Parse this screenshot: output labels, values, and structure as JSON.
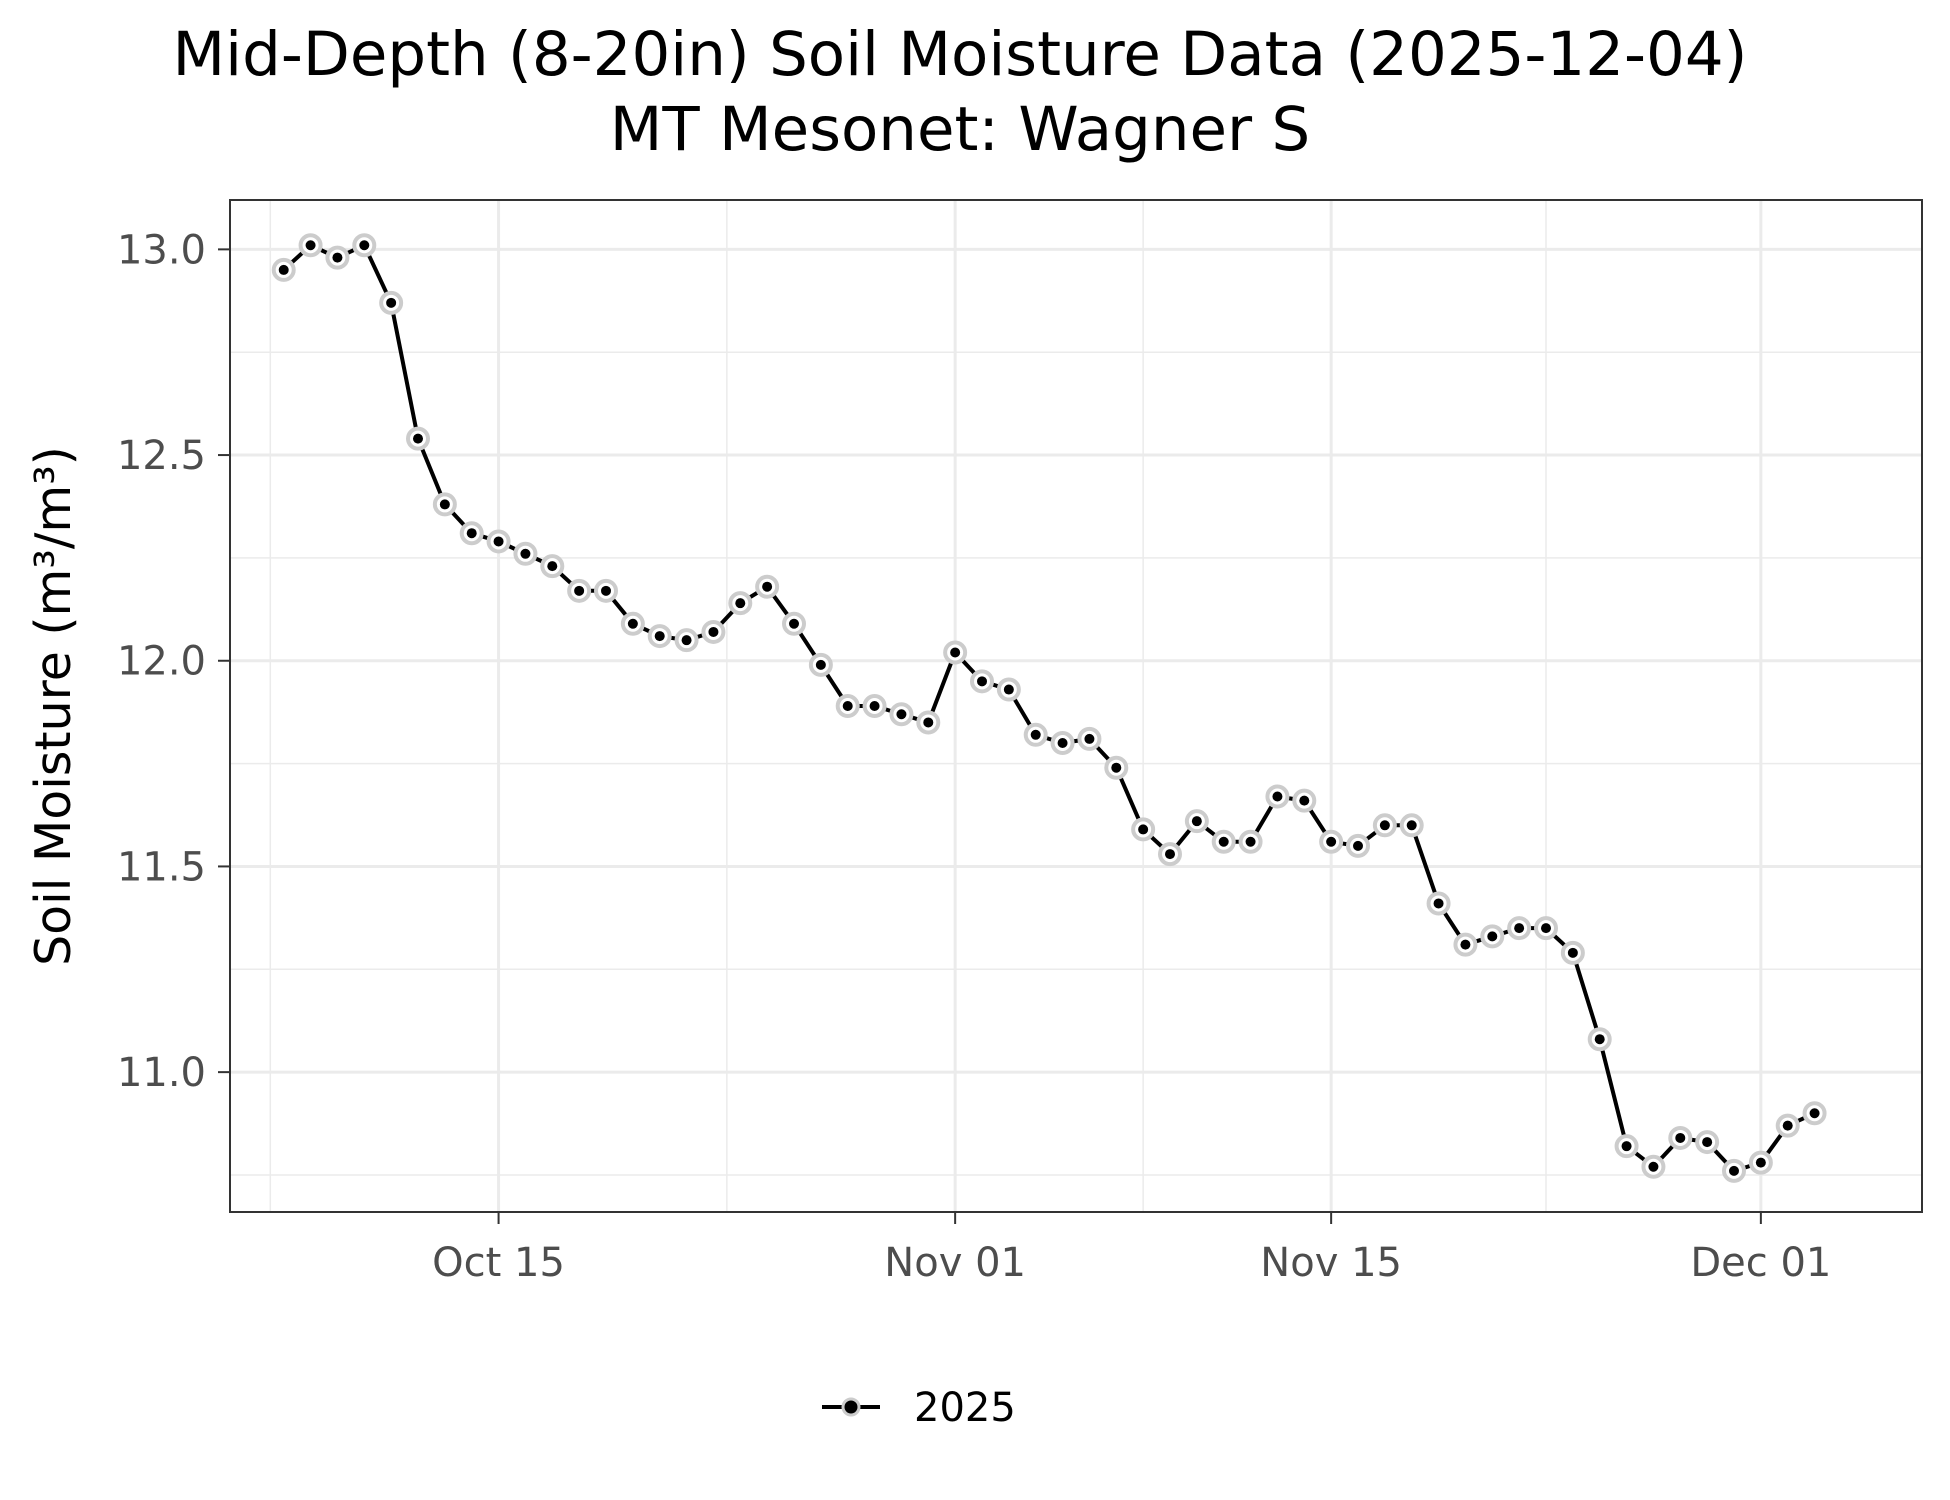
{
  "title_line1": "Mid-Depth (8-20in) Soil Moisture Data (2025-12-04)",
  "title_line2": "MT Mesonet: Wagner S",
  "chart_data": {
    "type": "line",
    "title": "Mid-Depth (8-20in) Soil Moisture Data (2025-12-04)",
    "subtitle": "MT Mesonet: Wagner S",
    "xlabel": "",
    "ylabel": "Soil Moisture (m³/m³)",
    "x_tick_labels": [
      "Oct 15",
      "Nov 01",
      "Nov 15",
      "Dec 01"
    ],
    "x_ticks": [
      "2025-10-15",
      "2025-11-01",
      "2025-11-15",
      "2025-12-01"
    ],
    "y_tick_labels": [
      "11.0",
      "11.5",
      "12.0",
      "12.5",
      "13.0"
    ],
    "y_ticks": [
      11.0,
      11.5,
      12.0,
      12.5,
      13.0
    ],
    "xlim": [
      "2025-10-05",
      "2025-12-07"
    ],
    "ylim": [
      10.66,
      13.12
    ],
    "grid": true,
    "legend_position": "bottom",
    "series": [
      {
        "name": "2025",
        "color": "#000000",
        "marker_halo_color": "#cccccc",
        "x": [
          "2025-10-07",
          "2025-10-08",
          "2025-10-09",
          "2025-10-10",
          "2025-10-11",
          "2025-10-12",
          "2025-10-13",
          "2025-10-14",
          "2025-10-15",
          "2025-10-16",
          "2025-10-17",
          "2025-10-18",
          "2025-10-19",
          "2025-10-20",
          "2025-10-21",
          "2025-10-22",
          "2025-10-23",
          "2025-10-24",
          "2025-10-25",
          "2025-10-26",
          "2025-10-27",
          "2025-10-28",
          "2025-10-29",
          "2025-10-30",
          "2025-10-31",
          "2025-11-01",
          "2025-11-02",
          "2025-11-03",
          "2025-11-04",
          "2025-11-05",
          "2025-11-06",
          "2025-11-07",
          "2025-11-08",
          "2025-11-09",
          "2025-11-10",
          "2025-11-11",
          "2025-11-12",
          "2025-11-13",
          "2025-11-14",
          "2025-11-15",
          "2025-11-16",
          "2025-11-17",
          "2025-11-18",
          "2025-11-19",
          "2025-11-20",
          "2025-11-21",
          "2025-11-22",
          "2025-11-23",
          "2025-11-24",
          "2025-11-25",
          "2025-11-26",
          "2025-11-27",
          "2025-11-28",
          "2025-11-29",
          "2025-11-30",
          "2025-12-01",
          "2025-12-02",
          "2025-12-03",
          "2025-12-04"
        ],
        "values": [
          12.95,
          13.01,
          12.98,
          13.01,
          12.87,
          12.54,
          12.38,
          12.31,
          12.29,
          12.26,
          12.23,
          12.17,
          12.17,
          12.09,
          12.06,
          12.05,
          12.07,
          12.14,
          12.18,
          12.09,
          11.99,
          11.89,
          11.89,
          11.87,
          11.85,
          12.02,
          11.95,
          11.93,
          11.82,
          11.8,
          11.81,
          11.74,
          11.59,
          11.53,
          11.61,
          11.56,
          11.56,
          11.67,
          11.66,
          11.56,
          11.55,
          11.6,
          11.6,
          11.41,
          11.31,
          11.33,
          11.35,
          11.35,
          11.29,
          11.08,
          10.82,
          10.77,
          10.84,
          10.83,
          10.76,
          10.78,
          10.87,
          10.9,
          null
        ]
      }
    ]
  },
  "legend": {
    "items": [
      {
        "label": "2025"
      }
    ]
  }
}
